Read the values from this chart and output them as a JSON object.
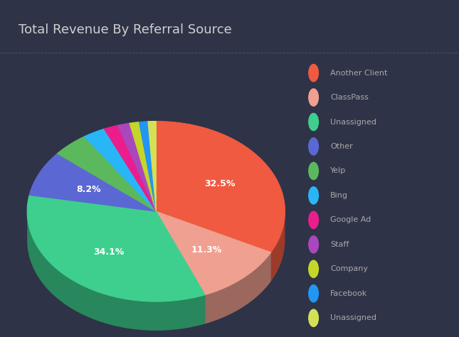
{
  "title": "Total Revenue By Referral Source",
  "background_color": "#2e3347",
  "title_color": "#d0d0d0",
  "labels": [
    "Another Client",
    "ClassPass",
    "Unassigned",
    "Other",
    "Yelp",
    "Bing",
    "Google Ad",
    "Staff",
    "Company",
    "Facebook",
    "Unassigned"
  ],
  "sizes": [
    32.5,
    11.3,
    34.1,
    8.2,
    4.5,
    2.8,
    1.8,
    1.5,
    1.2,
    1.1,
    1.0
  ],
  "colors": [
    "#f05a40",
    "#f0a090",
    "#3ecf8e",
    "#5b68d4",
    "#5cb85c",
    "#29b6f6",
    "#e91e8c",
    "#ab47bc",
    "#c6d629",
    "#2196f3",
    "#d4e157"
  ],
  "text_color": "#ffffff",
  "legend_text_color": "#aaaaaa",
  "header_bg": "#3a3f55",
  "divider_color": "#5a6080"
}
